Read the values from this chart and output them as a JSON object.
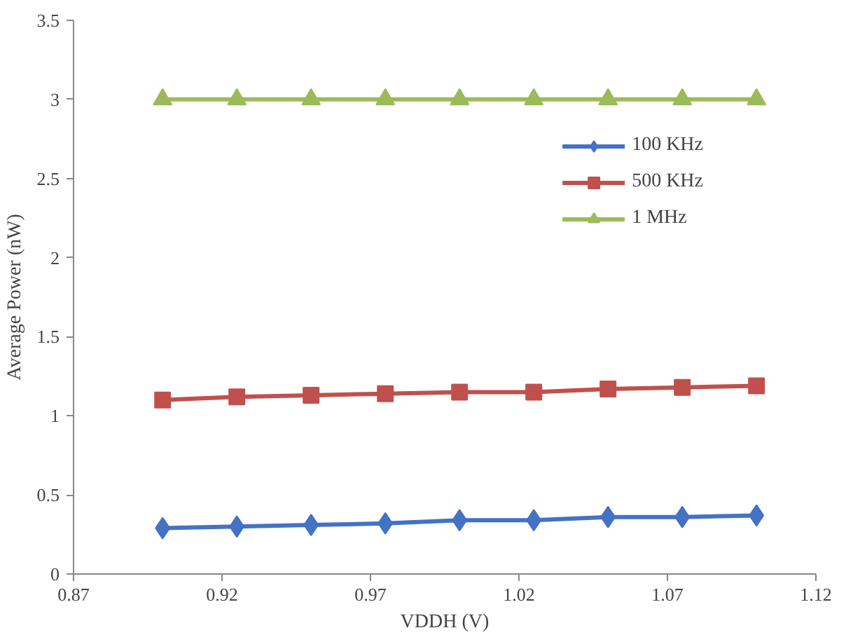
{
  "chart_data": {
    "type": "line",
    "xlabel": "VDDH (V)",
    "ylabel": "Average Power (nW)",
    "x": [
      0.9,
      0.925,
      0.95,
      0.975,
      1.0,
      1.025,
      1.05,
      1.075,
      1.1
    ],
    "series": [
      {
        "name": "100 KHz",
        "color": "#4472c4",
        "marker": "diamond",
        "values": [
          0.29,
          0.3,
          0.31,
          0.32,
          0.34,
          0.34,
          0.36,
          0.36,
          0.37
        ]
      },
      {
        "name": "500 KHz",
        "color": "#c0504d",
        "marker": "square",
        "values": [
          1.1,
          1.12,
          1.13,
          1.14,
          1.15,
          1.15,
          1.17,
          1.18,
          1.19
        ]
      },
      {
        "name": "1 MHz",
        "color": "#9bbb59",
        "marker": "triangle",
        "values": [
          3.0,
          3.0,
          3.0,
          3.0,
          3.0,
          3.0,
          3.0,
          3.0,
          3.0
        ]
      }
    ],
    "xlim": [
      0.87,
      1.12
    ],
    "xticks": [
      0.87,
      0.92,
      0.97,
      1.02,
      1.07,
      1.12
    ],
    "ylim": [
      0,
      3.5
    ],
    "yticks": [
      0,
      {
        "value": 0.5,
        "label": "0.5"
      },
      1,
      {
        "value": 1.5,
        "label": "1.5"
      },
      2,
      {
        "value": 2.5,
        "label": "2.5"
      },
      3,
      {
        "value": 3.5,
        "label": "3.5"
      }
    ],
    "grid": false,
    "legend": "top right",
    "line_style": "solid"
  }
}
